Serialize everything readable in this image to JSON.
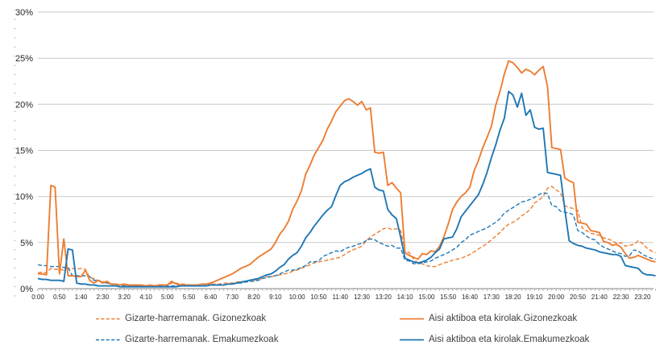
{
  "chart_data": {
    "type": "line",
    "title": "",
    "grid": "horizontal",
    "legend_position": "bottom",
    "y_axis": {
      "unit": "%",
      "min": 0,
      "max": 30,
      "ticks": [
        "0%",
        "5%",
        "10%",
        "15%",
        "20%",
        "25%",
        "30%"
      ]
    },
    "x_axis": {
      "interval_minutes": 10,
      "points_per_day": 144,
      "tick_labels": [
        "0:00",
        "0:50",
        "1:40",
        "2:30",
        "3:20",
        "4:10",
        "5:00",
        "5:50",
        "6:40",
        "7:30",
        "8:20",
        "9:10",
        "10:00",
        "10:50",
        "11:40",
        "12:30",
        "13:20",
        "14:10",
        "15:00",
        "15:50",
        "16:40",
        "17:30",
        "18:20",
        "19:10",
        "20:00",
        "20:50",
        "21:40",
        "22:30",
        "23:20"
      ]
    },
    "colors": {
      "orange": "#ED7D31",
      "blue": "#1F77B4"
    },
    "series": [
      {
        "name": "Gizarte-harremanak. Gizonezkoak",
        "color": "#ED7D31",
        "dash": "dashed",
        "values": [
          1.7,
          1.8,
          1.7,
          2.2,
          2.1,
          2.1,
          2.0,
          2.2,
          2.2,
          2.1,
          2.2,
          2.1,
          1.2,
          1.1,
          0.9,
          0.8,
          0.6,
          0.5,
          0.5,
          0.4,
          0.4,
          0.3,
          0.3,
          0.3,
          0.3,
          0.3,
          0.3,
          0.3,
          0.4,
          0.4,
          0.4,
          0.6,
          0.6,
          0.5,
          0.5,
          0.4,
          0.4,
          0.4,
          0.5,
          0.5,
          0.5,
          0.5,
          0.5,
          0.6,
          0.6,
          0.6,
          0.7,
          0.8,
          0.8,
          0.9,
          0.9,
          1.0,
          1.1,
          1.3,
          1.3,
          1.4,
          1.5,
          1.6,
          1.7,
          1.9,
          2.0,
          2.2,
          2.4,
          2.6,
          2.8,
          2.9,
          3.0,
          3.1,
          3.2,
          3.3,
          3.4,
          3.7,
          4.0,
          4.2,
          4.4,
          4.6,
          5.2,
          5.6,
          5.9,
          6.2,
          6.5,
          6.6,
          6.4,
          6.5,
          6.3,
          4.1,
          3.9,
          3.2,
          2.8,
          2.7,
          2.5,
          2.4,
          2.4,
          2.6,
          2.8,
          2.9,
          3.1,
          3.2,
          3.3,
          3.5,
          3.7,
          4.0,
          4.3,
          4.6,
          4.9,
          5.3,
          5.7,
          6.1,
          6.6,
          7.0,
          7.2,
          7.5,
          7.9,
          8.2,
          8.6,
          9.3,
          9.6,
          10.0,
          10.9,
          11.1,
          10.7,
          10.4,
          9.0,
          8.8,
          8.7,
          8.5,
          6.6,
          6.3,
          6.0,
          5.9,
          5.8,
          5.5,
          5.4,
          5.2,
          4.9,
          5.0,
          4.6,
          4.7,
          4.8,
          5.2,
          4.9,
          4.4,
          4.1,
          3.9
        ]
      },
      {
        "name": "Gizarte-harremanak. Emakumezkoak",
        "color": "#1F77B4",
        "dash": "dashed",
        "values": [
          2.6,
          2.5,
          2.5,
          2.4,
          2.4,
          2.4,
          2.3,
          2.3,
          1.4,
          1.4,
          1.4,
          1.4,
          1.3,
          0.9,
          0.9,
          0.7,
          0.6,
          0.5,
          0.4,
          0.4,
          0.3,
          0.3,
          0.3,
          0.3,
          0.3,
          0.3,
          0.2,
          0.2,
          0.3,
          0.3,
          0.3,
          0.3,
          0.3,
          0.3,
          0.3,
          0.3,
          0.3,
          0.3,
          0.3,
          0.4,
          0.4,
          0.4,
          0.4,
          0.4,
          0.5,
          0.5,
          0.6,
          0.6,
          0.7,
          0.8,
          0.8,
          0.9,
          1.1,
          1.2,
          1.3,
          1.4,
          1.6,
          1.8,
          2.0,
          2.0,
          2.1,
          2.3,
          2.5,
          2.9,
          2.9,
          3.0,
          3.5,
          3.7,
          3.9,
          4.1,
          4.0,
          4.3,
          4.5,
          4.6,
          4.8,
          4.9,
          5.2,
          5.4,
          5.3,
          5.0,
          4.8,
          4.6,
          4.7,
          4.4,
          4.4,
          3.1,
          3.0,
          2.7,
          2.7,
          2.8,
          2.9,
          3.0,
          3.3,
          3.5,
          3.7,
          3.9,
          4.2,
          4.5,
          5.0,
          5.3,
          5.8,
          6.0,
          6.2,
          6.4,
          6.6,
          6.9,
          7.2,
          7.6,
          8.2,
          8.5,
          8.8,
          9.1,
          9.4,
          9.5,
          9.7,
          9.9,
          10.2,
          10.4,
          10.3,
          9.0,
          8.9,
          8.4,
          8.3,
          8.2,
          8.0,
          6.3,
          6.1,
          5.7,
          5.4,
          5.3,
          4.8,
          4.5,
          4.3,
          4.1,
          3.9,
          3.8,
          3.5,
          3.6,
          4.2,
          4.1,
          3.7,
          3.5,
          3.3,
          3.2
        ]
      },
      {
        "name": "Aisi aktiboa eta kirolak.Gizonezkoak",
        "color": "#ED7D31",
        "dash": "solid",
        "values": [
          1.6,
          1.6,
          1.5,
          11.2,
          11.0,
          1.6,
          5.4,
          1.4,
          1.4,
          1.3,
          1.3,
          2.0,
          0.9,
          0.6,
          0.9,
          0.6,
          0.8,
          0.5,
          0.5,
          0.4,
          0.5,
          0.4,
          0.4,
          0.4,
          0.4,
          0.3,
          0.4,
          0.3,
          0.4,
          0.4,
          0.4,
          0.8,
          0.5,
          0.4,
          0.4,
          0.4,
          0.4,
          0.4,
          0.5,
          0.5,
          0.6,
          0.8,
          1.0,
          1.2,
          1.4,
          1.6,
          1.9,
          2.2,
          2.4,
          2.6,
          3.0,
          3.4,
          3.7,
          4.0,
          4.3,
          5.0,
          5.9,
          6.5,
          7.3,
          8.6,
          9.5,
          10.6,
          12.4,
          13.4,
          14.5,
          15.3,
          16.1,
          17.3,
          18.2,
          19.2,
          19.8,
          20.4,
          20.6,
          20.3,
          19.9,
          20.3,
          19.4,
          19.6,
          14.8,
          14.7,
          14.8,
          11.2,
          11.5,
          10.9,
          10.4,
          3.9,
          3.6,
          3.4,
          3.2,
          3.8,
          3.7,
          4.1,
          4.0,
          4.6,
          5.6,
          7.0,
          8.6,
          9.4,
          10.0,
          10.4,
          11.0,
          12.8,
          13.9,
          15.3,
          16.4,
          17.6,
          19.9,
          21.4,
          23.3,
          24.7,
          24.5,
          24.0,
          23.4,
          23.8,
          23.6,
          23.2,
          23.7,
          24.1,
          21.9,
          15.3,
          15.2,
          15.1,
          12.0,
          11.7,
          11.5,
          7.2,
          7.1,
          7.0,
          6.3,
          6.2,
          6.1,
          5.1,
          5.0,
          4.7,
          4.8,
          4.5,
          3.8,
          3.3,
          3.4,
          3.6,
          3.4,
          3.2,
          3.0,
          2.9
        ]
      },
      {
        "name": "Aisi aktiboa eta kirolak.Emakumezkoak",
        "color": "#1F77B4",
        "dash": "solid",
        "values": [
          1.1,
          1.0,
          1.0,
          0.9,
          0.9,
          0.9,
          0.8,
          4.3,
          4.2,
          0.6,
          0.5,
          0.5,
          0.4,
          0.4,
          0.3,
          0.3,
          0.3,
          0.3,
          0.3,
          0.2,
          0.2,
          0.2,
          0.2,
          0.2,
          0.2,
          0.2,
          0.2,
          0.2,
          0.2,
          0.2,
          0.2,
          0.2,
          0.2,
          0.3,
          0.3,
          0.3,
          0.3,
          0.3,
          0.3,
          0.3,
          0.4,
          0.4,
          0.4,
          0.4,
          0.5,
          0.5,
          0.6,
          0.7,
          0.8,
          0.9,
          1.0,
          1.1,
          1.3,
          1.5,
          1.6,
          1.9,
          2.3,
          2.6,
          3.2,
          3.6,
          3.9,
          4.6,
          5.5,
          6.1,
          6.8,
          7.4,
          8.0,
          8.5,
          8.9,
          10.1,
          11.2,
          11.6,
          11.8,
          12.1,
          12.3,
          12.5,
          12.8,
          13.0,
          11.0,
          10.7,
          10.6,
          8.6,
          8.0,
          7.6,
          5.6,
          3.3,
          3.1,
          2.9,
          2.8,
          2.9,
          3.1,
          3.4,
          3.9,
          4.3,
          5.4,
          5.5,
          5.6,
          6.5,
          7.8,
          8.4,
          9.0,
          9.6,
          10.2,
          11.3,
          12.6,
          14.2,
          15.6,
          17.2,
          18.5,
          21.4,
          21.0,
          19.7,
          21.2,
          18.8,
          19.4,
          17.5,
          17.3,
          17.4,
          12.6,
          12.5,
          12.4,
          12.3,
          8.6,
          5.2,
          4.9,
          4.7,
          4.6,
          4.4,
          4.3,
          4.2,
          4.0,
          3.9,
          3.8,
          3.7,
          3.7,
          3.5,
          2.5,
          2.4,
          2.3,
          2.2,
          1.7,
          1.5,
          1.5,
          1.4
        ]
      }
    ]
  },
  "legend": {
    "rows": 2,
    "columns": 2
  }
}
